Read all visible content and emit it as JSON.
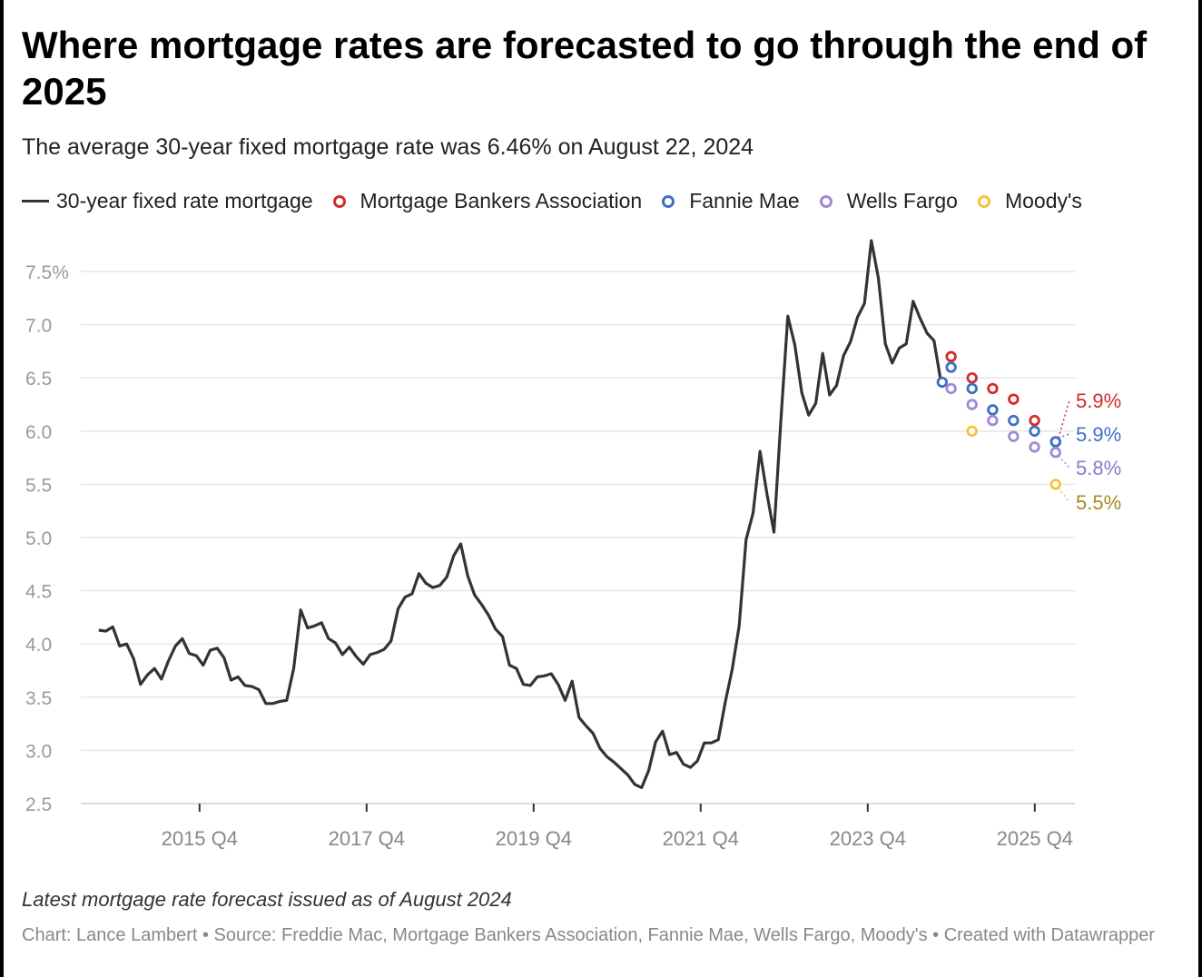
{
  "title": "Where mortgage rates are forecasted to go through the end of 2025",
  "subtitle": "The average 30-year fixed mortgage rate was 6.46% on August 22, 2024",
  "note": "Latest mortgage rate forecast issued as of August 2024",
  "footer": "Chart: Lance Lambert • Source: Freddie Mac, Mortgage Bankers Association, Fannie Mae, Wells Fargo, Moody's • Created with Datawrapper",
  "chart_data": {
    "type": "line",
    "legend_position": "top-left",
    "grid": "horizontal",
    "ylim": [
      2.5,
      7.5
    ],
    "yticks": [
      "2.5",
      "3.0",
      "3.5",
      "4.0",
      "4.5",
      "5.0",
      "5.5",
      "6.0",
      "6.5",
      "7.0",
      "7.5%"
    ],
    "ytick_values": [
      2.5,
      3.0,
      3.5,
      4.0,
      4.5,
      5.0,
      5.5,
      6.0,
      6.5,
      7.0,
      7.5
    ],
    "xticks": [
      "2015 Q4",
      "2017 Q4",
      "2019 Q4",
      "2021 Q4",
      "2023 Q4",
      "2025 Q4"
    ],
    "xtick_dates": [
      "2015-10-01",
      "2017-10-01",
      "2019-10-01",
      "2021-10-01",
      "2023-10-01",
      "2025-10-01"
    ],
    "xlim": [
      "2014-01-01",
      "2026-01-15"
    ],
    "line_series": {
      "name": "30-year fixed rate mortgage",
      "color": "#333333",
      "start": "2014-07",
      "monthly_values": [
        4.13,
        4.12,
        4.16,
        3.98,
        4.0,
        3.86,
        3.62,
        3.71,
        3.77,
        3.67,
        3.84,
        3.98,
        4.05,
        3.91,
        3.89,
        3.8,
        3.94,
        3.96,
        3.87,
        3.66,
        3.69,
        3.61,
        3.6,
        3.57,
        3.44,
        3.44,
        3.46,
        3.47,
        3.77,
        4.32,
        4.15,
        4.17,
        4.2,
        4.05,
        4.01,
        3.9,
        3.97,
        3.88,
        3.81,
        3.9,
        3.92,
        3.95,
        4.03,
        4.33,
        4.44,
        4.47,
        4.66,
        4.57,
        4.53,
        4.55,
        4.63,
        4.83,
        4.94,
        4.64,
        4.46,
        4.37,
        4.27,
        4.14,
        4.07,
        3.8,
        3.77,
        3.62,
        3.61,
        3.69,
        3.7,
        3.72,
        3.62,
        3.47,
        3.65,
        3.31,
        3.23,
        3.16,
        3.02,
        2.94,
        2.89,
        2.83,
        2.77,
        2.68,
        2.65,
        2.81,
        3.08,
        3.18,
        2.96,
        2.98,
        2.87,
        2.84,
        2.9,
        3.07,
        3.07,
        3.1,
        3.45,
        3.76,
        4.17,
        4.98,
        5.23,
        5.81,
        5.41,
        5.05,
        6.11,
        7.08,
        6.81,
        6.36,
        6.15,
        6.26,
        6.73,
        6.34,
        6.43,
        6.71,
        6.84,
        7.07,
        7.2,
        7.79,
        7.44,
        6.82,
        6.64,
        6.78,
        6.82,
        7.22,
        7.06,
        6.92,
        6.85,
        6.46
      ]
    },
    "forecast_series": [
      {
        "name": "Mortgage Bankers Association",
        "color": "#d52a2a",
        "label_color": "#d52a2a",
        "end_label": "5.9%",
        "points": [
          [
            "2024-09-30",
            6.7
          ],
          [
            "2024-12-31",
            6.5
          ],
          [
            "2025-03-31",
            6.4
          ],
          [
            "2025-06-30",
            6.3
          ],
          [
            "2025-09-30",
            6.1
          ],
          [
            "2025-12-31",
            5.9
          ]
        ]
      },
      {
        "name": "Fannie Mae",
        "color": "#3e6fc4",
        "label_color": "#3e6fc4",
        "end_label": "5.9%",
        "points": [
          [
            "2024-08-22",
            6.46
          ],
          [
            "2024-09-30",
            6.6
          ],
          [
            "2024-12-31",
            6.4
          ],
          [
            "2025-03-31",
            6.2
          ],
          [
            "2025-06-30",
            6.1
          ],
          [
            "2025-09-30",
            6.0
          ],
          [
            "2025-12-31",
            5.9
          ]
        ]
      },
      {
        "name": "Wells Fargo",
        "color": "#a08bd2",
        "label_color": "#8e78c9",
        "end_label": "5.8%",
        "points": [
          [
            "2024-09-30",
            6.4
          ],
          [
            "2024-12-31",
            6.25
          ],
          [
            "2025-03-31",
            6.1
          ],
          [
            "2025-06-30",
            5.95
          ],
          [
            "2025-09-30",
            5.85
          ],
          [
            "2025-12-31",
            5.8
          ]
        ]
      },
      {
        "name": "Moody's",
        "color": "#f7c23c",
        "label_color": "#a88a1e",
        "end_label": "5.5%",
        "points": [
          [
            "2024-12-31",
            6.0
          ],
          [
            "2025-12-31",
            5.5
          ]
        ]
      }
    ]
  }
}
